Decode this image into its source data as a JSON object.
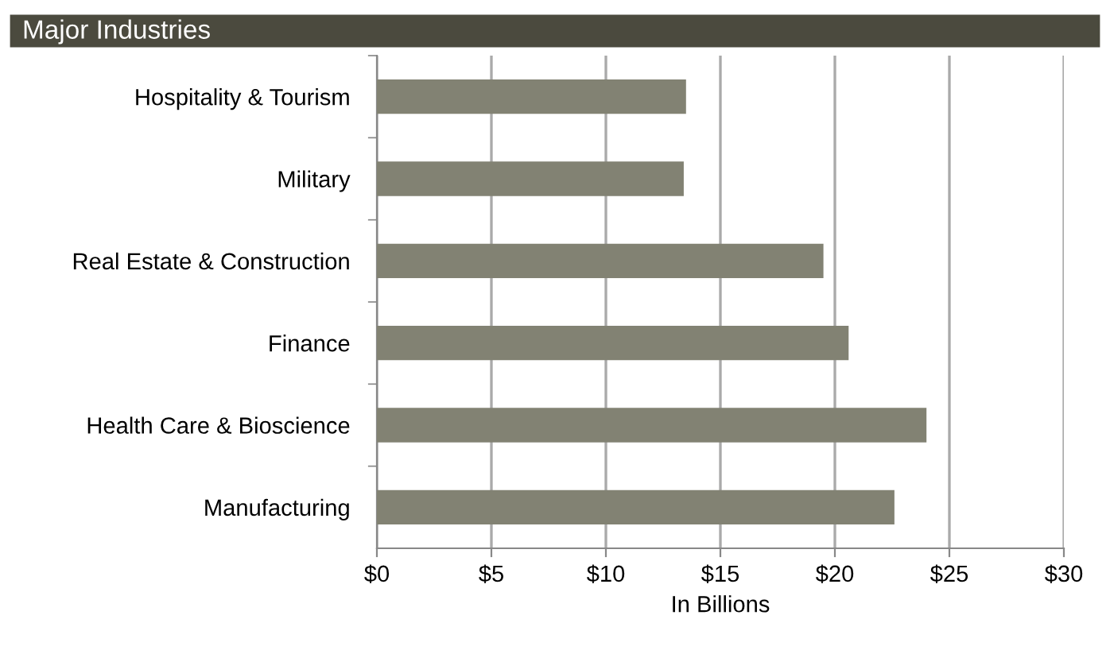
{
  "chart_data": {
    "type": "bar",
    "orientation": "horizontal",
    "title": "Major Industries",
    "xlabel": "In Billions",
    "categories": [
      "Hospitality & Tourism",
      "Military",
      "Real Estate & Construction",
      "Finance",
      "Health Care & Bioscience",
      "Manufacturing"
    ],
    "values": [
      13.5,
      13.4,
      19.5,
      20.6,
      24.0,
      22.6
    ],
    "color": "#828273",
    "xlim": [
      0,
      30
    ],
    "xticks": [
      {
        "value": 0,
        "label": "$0"
      },
      {
        "value": 5,
        "label": "$5"
      },
      {
        "value": 10,
        "label": "$10"
      },
      {
        "value": 15,
        "label": "$15"
      },
      {
        "value": 20,
        "label": "$20"
      },
      {
        "value": 25,
        "label": "$25"
      },
      {
        "value": 30,
        "label": "$30"
      }
    ],
    "grid": "x"
  }
}
